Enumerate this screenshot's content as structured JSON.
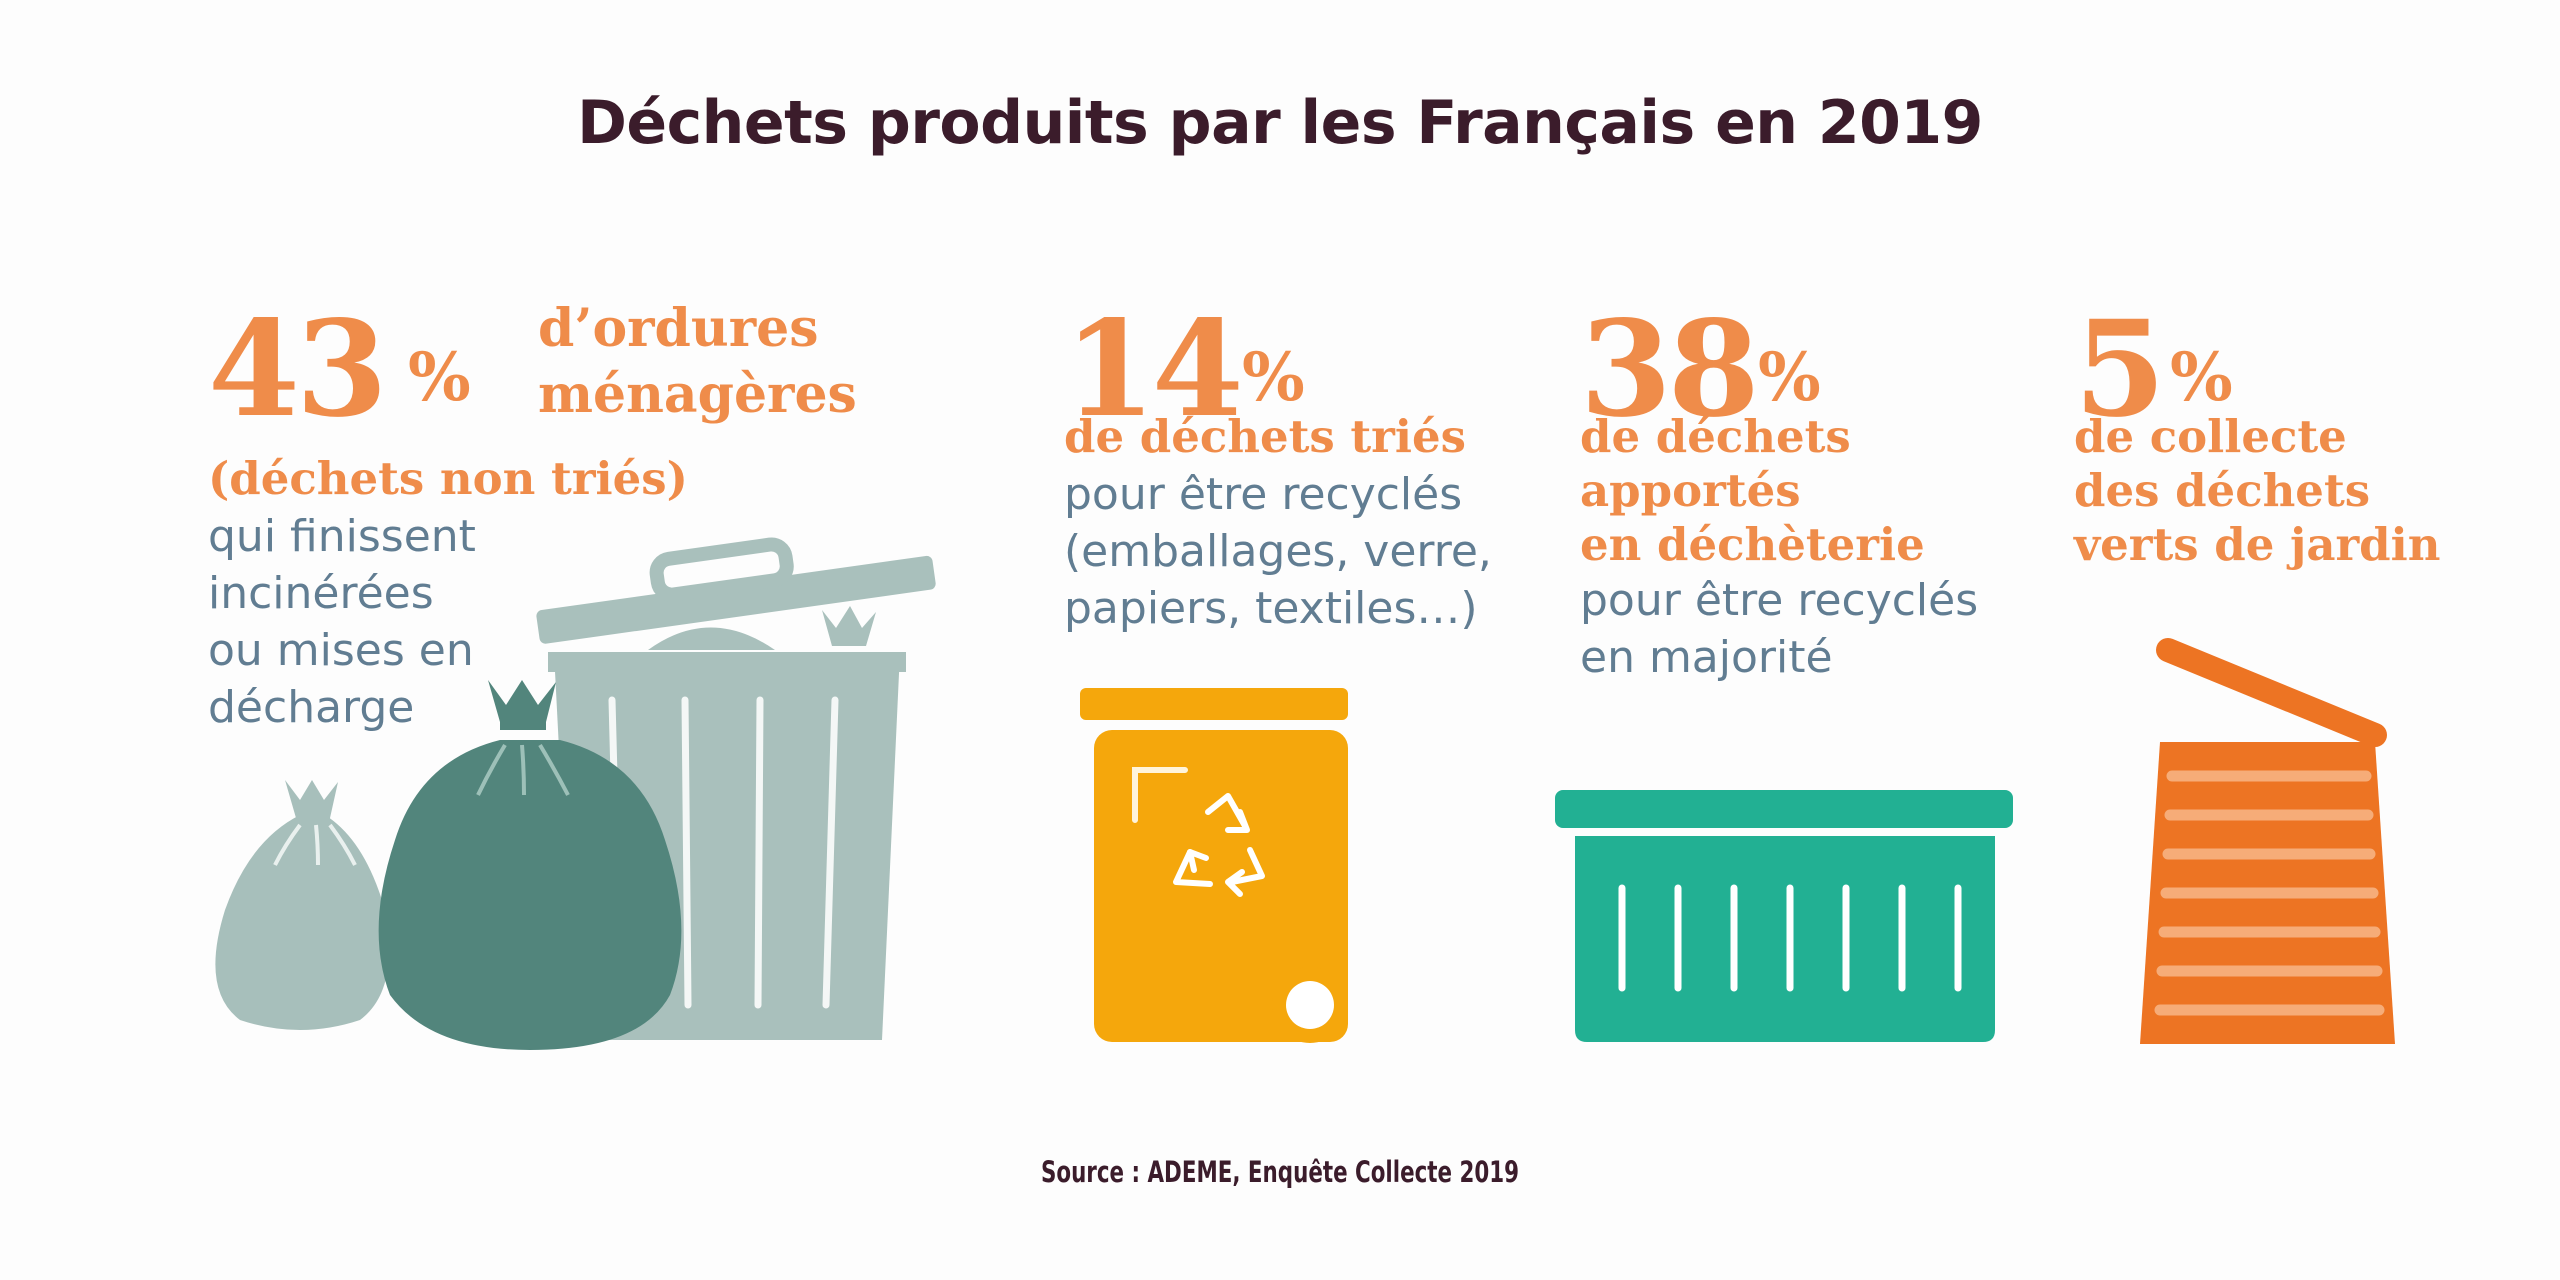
{
  "title": "Déchets produits par les Français en 2019",
  "source": "Source : ADEME, Enquête Collecte 2019",
  "colors": {
    "title": "#3b1c2b",
    "orange_text": "#ef8c4a",
    "slate_text": "#617d92",
    "bag_light": "#a7bfbb",
    "bag_dark": "#52857c",
    "bin_gray": "#a9c0bc",
    "yellow_bin": "#f5a70c",
    "green_bin": "#22b093",
    "orange_bin": "#ed7423"
  },
  "stats": [
    {
      "value": "43",
      "unit": "%",
      "headline": [
        "d’ordures",
        "ménagères"
      ],
      "orange_lines": [
        "(déchets non triés)"
      ],
      "slate_lines": [
        "qui finissent",
        "incinérées",
        "ou mises en",
        "décharge"
      ],
      "icon": "garbage-can-and-bags-icon"
    },
    {
      "value": "14",
      "unit": "%",
      "orange_lines": [
        "de déchets triés"
      ],
      "slate_lines": [
        "pour être recyclés",
        "(emballages, verre,",
        "papiers, textiles…)"
      ],
      "icon": "recycling-bin-icon"
    },
    {
      "value": "38",
      "unit": "%",
      "orange_lines": [
        "de déchets",
        "apportés",
        "en déchèterie"
      ],
      "slate_lines": [
        "pour être recyclés",
        "en majorité"
      ],
      "icon": "dump-container-icon"
    },
    {
      "value": "5",
      "unit": "%",
      "orange_lines": [
        "de collecte",
        "des déchets",
        "verts de jardin"
      ],
      "slate_lines": [],
      "icon": "garden-waste-bin-icon"
    }
  ]
}
